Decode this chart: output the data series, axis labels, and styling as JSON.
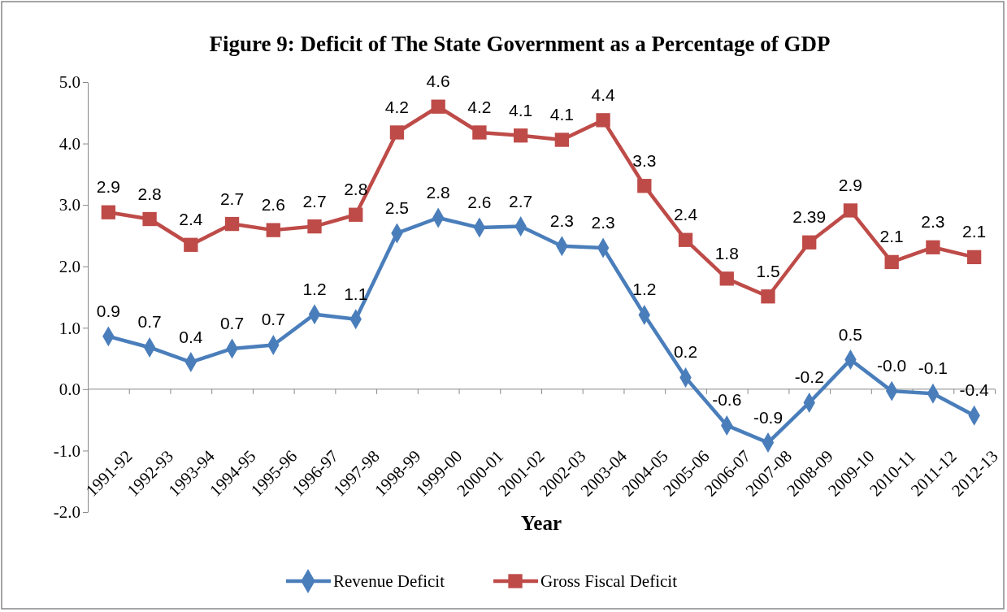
{
  "chart_data": {
    "type": "line",
    "title": "Figure 9: Deficit of The State Government as a Percentage of GDP",
    "xlabel": "Year",
    "categories": [
      "1991-92",
      "1992-93",
      "1993-94",
      "1994-95",
      "1995-96",
      "1996-97",
      "1997-98",
      "1998-99",
      "1999-00",
      "2000-01",
      "2001-02",
      "2002-03",
      "2003-04",
      "2004-05",
      "2005-06",
      "2006-07",
      "2007-08",
      "2008-09",
      "2009-10",
      "2010-11",
      "2011-12",
      "2012-13"
    ],
    "ylim": [
      -2,
      5
    ],
    "yticks": [
      {
        "value": -2,
        "label": "-2.0"
      },
      {
        "value": -1,
        "label": "-1.0"
      },
      {
        "value": 0,
        "label": "0.0"
      },
      {
        "value": 1,
        "label": "1.0"
      },
      {
        "value": 2,
        "label": "2.0"
      },
      {
        "value": 3,
        "label": "3.0"
      },
      {
        "value": 4,
        "label": "4.0"
      },
      {
        "value": 5,
        "label": "5.0"
      }
    ],
    "legend": "bottom",
    "series": [
      {
        "name": "Revenue Deficit",
        "color": "#4a7ebb",
        "marker": "diamond",
        "values": [
          0.86,
          0.68,
          0.44,
          0.66,
          0.72,
          1.22,
          1.14,
          2.54,
          2.79,
          2.63,
          2.65,
          2.33,
          2.3,
          1.21,
          0.19,
          -0.59,
          -0.87,
          -0.22,
          0.48,
          -0.03,
          -0.07,
          -0.43
        ],
        "value_labels": [
          "0.9",
          "0.7",
          "0.4",
          "0.7",
          "0.7",
          "1.2",
          "1.1",
          "2.5",
          "2.8",
          "2.6",
          "2.7",
          "2.3",
          "2.3",
          "1.2",
          "0.2",
          "-0.6",
          "-0.9",
          "-0.2",
          "0.5",
          "-0.0",
          "-0.1",
          "-0.4"
        ]
      },
      {
        "name": "Gross Fiscal Deficit",
        "color": "#be4b48",
        "marker": "square",
        "values": [
          2.88,
          2.77,
          2.35,
          2.69,
          2.59,
          2.65,
          2.84,
          4.18,
          4.6,
          4.18,
          4.13,
          4.06,
          4.38,
          3.31,
          2.43,
          1.8,
          1.51,
          2.39,
          2.91,
          2.07,
          2.31,
          2.15
        ],
        "value_labels": [
          "2.9",
          "2.8",
          "2.4",
          "2.7",
          "2.6",
          "2.7",
          "2.8",
          "4.2",
          "4.6",
          "4.2",
          "4.1",
          "4.1",
          "4.4",
          "3.3",
          "2.4",
          "1.8",
          "1.5",
          "2.39",
          "2.9",
          "2.1",
          "2.3",
          "2.1"
        ]
      }
    ]
  }
}
